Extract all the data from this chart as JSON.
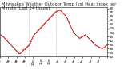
{
  "title": "Milwaukee Weather Outdoor Temp (vs) Heat Index per Minute (Last 24 Hours)",
  "background_color": "#ffffff",
  "plot_bg_color": "#ffffff",
  "line_color": "#cc0000",
  "grid_color": "#aaaaaa",
  "ylim": [
    20,
    82
  ],
  "yticks": [
    20,
    25,
    30,
    35,
    40,
    45,
    50,
    55,
    60,
    65,
    70,
    75,
    80
  ],
  "vlines": [
    0.27,
    0.52
  ],
  "title_fontsize": 3.8,
  "tick_fontsize": 3.0,
  "y_values": [
    48,
    47,
    46,
    46,
    45,
    44,
    43,
    42,
    41,
    40,
    39,
    38,
    37,
    36,
    35,
    34,
    33,
    32,
    31,
    30,
    29,
    28,
    27,
    26,
    25,
    24,
    24,
    24,
    25,
    26,
    27,
    28,
    29,
    29,
    30,
    31,
    32,
    33,
    34,
    35,
    37,
    39,
    41,
    43,
    45,
    47,
    48,
    49,
    50,
    51,
    52,
    53,
    54,
    55,
    56,
    57,
    58,
    59,
    60,
    61,
    62,
    63,
    64,
    65,
    66,
    67,
    68,
    69,
    70,
    71,
    72,
    73,
    74,
    75,
    76,
    76,
    77,
    77,
    78,
    78,
    78,
    77,
    76,
    75,
    74,
    73,
    72,
    71,
    70,
    68,
    66,
    64,
    62,
    60,
    58,
    56,
    54,
    52,
    50,
    49,
    48,
    47,
    46,
    45,
    44,
    43,
    43,
    44,
    44,
    45,
    45,
    46,
    46,
    47,
    47,
    46,
    45,
    44,
    43,
    42,
    41,
    40,
    39,
    38,
    37,
    36,
    35,
    34,
    34,
    33,
    33,
    32,
    32,
    31,
    31,
    30,
    30,
    31,
    31,
    32,
    33,
    34,
    35,
    35
  ],
  "xtick_positions": [
    0.0,
    0.077,
    0.154,
    0.231,
    0.308,
    0.385,
    0.462,
    0.538,
    0.615,
    0.692,
    0.769,
    0.846,
    0.923,
    1.0
  ],
  "xtick_labels": [
    "6p",
    "7p",
    "8p",
    "9p",
    "10p",
    "11p",
    "12a",
    "1a",
    "2a",
    "3a",
    "4a",
    "5a",
    "6a",
    ""
  ]
}
